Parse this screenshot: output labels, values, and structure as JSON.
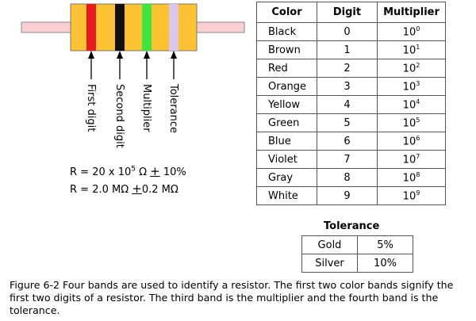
{
  "bands": [
    {
      "label": "First digit",
      "color": "#e8191e"
    },
    {
      "label": "Second digit",
      "color": "#111111"
    },
    {
      "label": "Multiplier",
      "color": "#3ee53e"
    },
    {
      "label": "Tolerance",
      "color": "#d8c6ee"
    }
  ],
  "resistor": {
    "body_color": "#fcc232",
    "lead_color": "#f8cfd3"
  },
  "equations": {
    "line1": {
      "prefix": "R = 20 x 10",
      "exp": "5",
      "unit": " Ω ",
      "pm": "+",
      "value": " 10%"
    },
    "line2": {
      "prefix": "R = 2.0 MΩ ",
      "pm": "+",
      "value": "0.2 MΩ"
    }
  },
  "color_table": {
    "headers": [
      "Color",
      "Digit",
      "Multiplier"
    ],
    "base": "10",
    "rows": [
      {
        "color": "Black",
        "digit": "0",
        "exp": "0"
      },
      {
        "color": "Brown",
        "digit": "1",
        "exp": "1"
      },
      {
        "color": "Red",
        "digit": "2",
        "exp": "2"
      },
      {
        "color": "Orange",
        "digit": "3",
        "exp": "3"
      },
      {
        "color": "Yellow",
        "digit": "4",
        "exp": "4"
      },
      {
        "color": "Green",
        "digit": "5",
        "exp": "5"
      },
      {
        "color": "Blue",
        "digit": "6",
        "exp": "6"
      },
      {
        "color": "Violet",
        "digit": "7",
        "exp": "7"
      },
      {
        "color": "Gray",
        "digit": "8",
        "exp": "8"
      },
      {
        "color": "White",
        "digit": "9",
        "exp": "9"
      }
    ]
  },
  "tolerance_table": {
    "title": "Tolerance",
    "rows": [
      {
        "color": "Gold",
        "value": "5%"
      },
      {
        "color": "Silver",
        "value": "10%"
      }
    ]
  },
  "caption": "Figure 6-2 Four bands are used to identify a resistor. The first two color bands signify the first two digits of a resistor. The third band is the multiplier and the fourth band is the tolerance."
}
